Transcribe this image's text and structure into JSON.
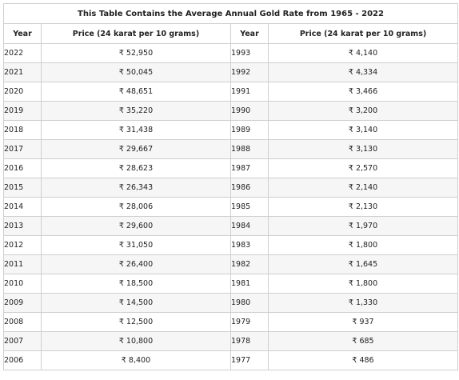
{
  "title": "This Table Contains the Average Annual Gold Rate from 1965 - 2022",
  "headers": [
    "Year",
    "Price (24 karat per 10 grams)",
    "Year",
    "Price (24 karat per 10 grams)"
  ],
  "rows": [
    [
      "2022",
      "₹ 52,950",
      "1993",
      "₹ 4,140"
    ],
    [
      "2021",
      "₹ 50,045",
      "1992",
      "₹ 4,334"
    ],
    [
      "2020",
      "₹ 48,651",
      "1991",
      "₹ 3,466"
    ],
    [
      "2019",
      "₹ 35,220",
      "1990",
      "₹ 3,200"
    ],
    [
      "2018",
      "₹ 31,438",
      "1989",
      "₹ 3,140"
    ],
    [
      "2017",
      "₹ 29,667",
      "1988",
      "₹ 3,130"
    ],
    [
      "2016",
      "₹ 28,623",
      "1987",
      "₹ 2,570"
    ],
    [
      "2015",
      "₹ 26,343",
      "1986",
      "₹ 2,140"
    ],
    [
      "2014",
      "₹ 28,006",
      "1985",
      "₹ 2,130"
    ],
    [
      "2013",
      "₹ 29,600",
      "1984",
      "₹ 1,970"
    ],
    [
      "2012",
      "₹ 31,050",
      "1983",
      "₹ 1,800"
    ],
    [
      "2011",
      "₹ 26,400",
      "1982",
      "₹ 1,645"
    ],
    [
      "2010",
      "₹ 18,500",
      "1981",
      "₹ 1,800"
    ],
    [
      "2009",
      "₹ 14,500",
      "1980",
      "₹ 1,330"
    ],
    [
      "2008",
      "₹ 12,500",
      "1979",
      "₹ 937"
    ],
    [
      "2007",
      "₹ 10,800",
      "1978",
      "₹ 685"
    ],
    [
      "2006",
      "₹ 8,400",
      "1977",
      "₹ 486"
    ]
  ]
}
